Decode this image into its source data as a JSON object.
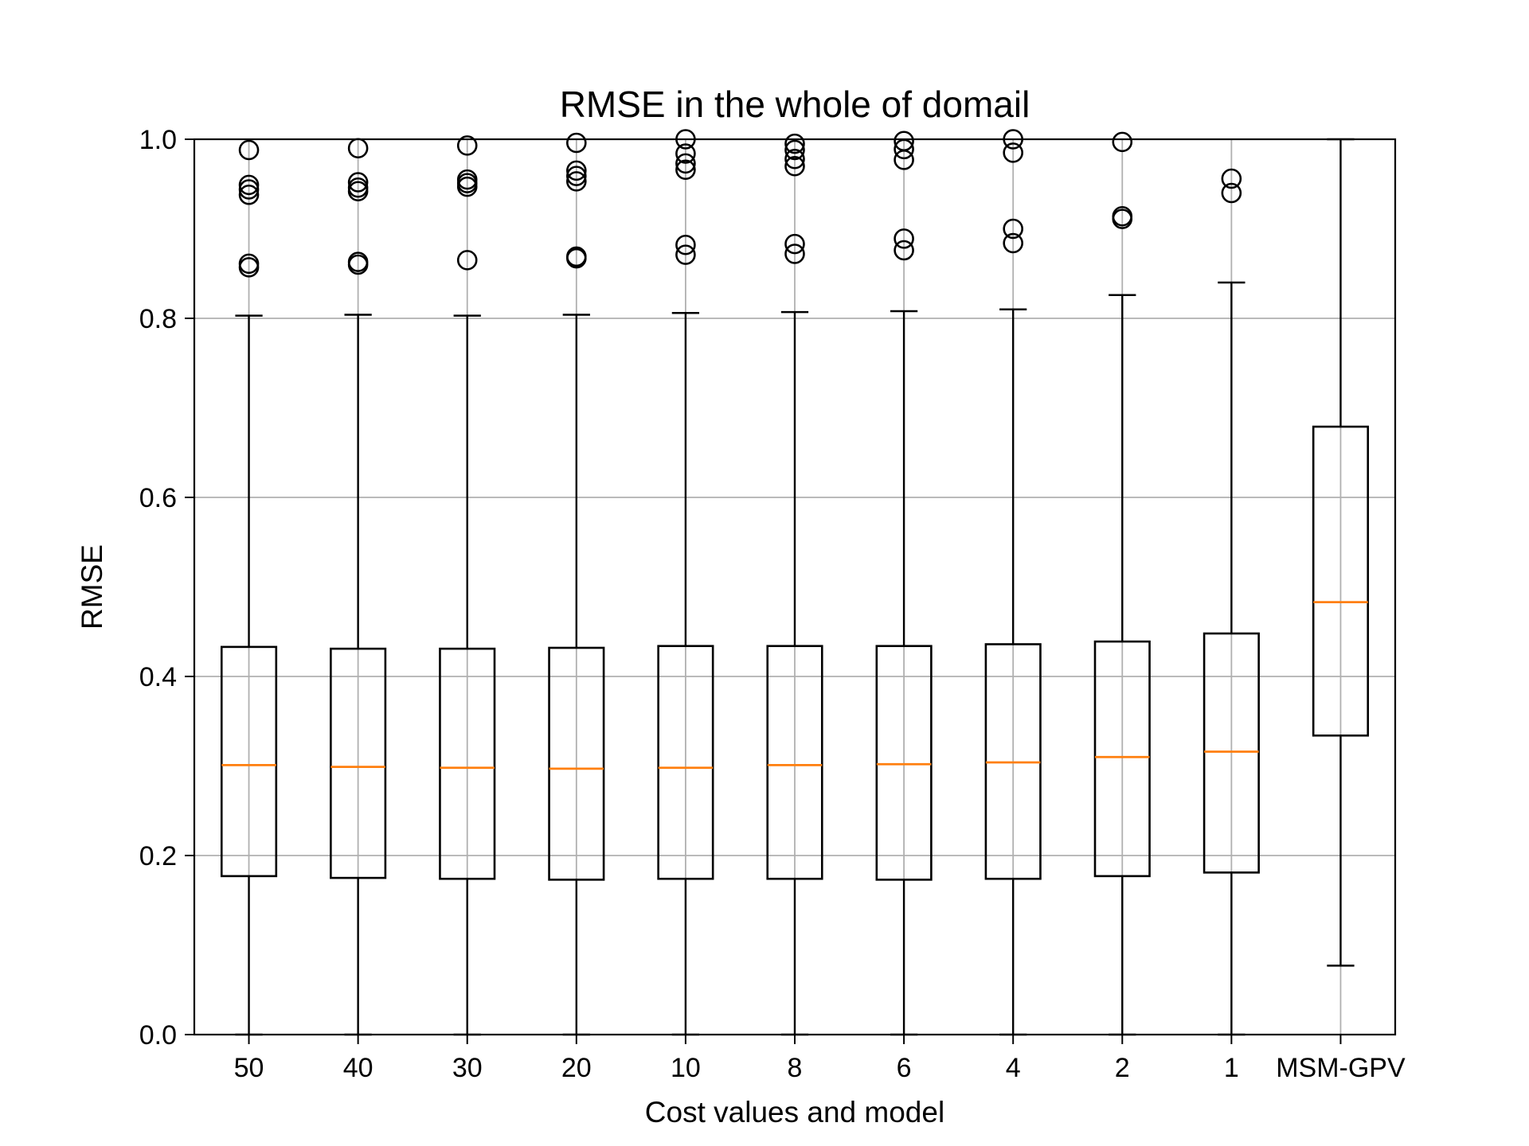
{
  "chart_data": {
    "type": "boxplot",
    "title": "RMSE in the whole of domail",
    "xlabel": "Cost values and model",
    "ylabel": "RMSE",
    "ylim": [
      0,
      1.0
    ],
    "yticks": [
      "0.0",
      "0.2",
      "0.4",
      "0.6",
      "0.8",
      "1.0"
    ],
    "grid": true,
    "colors": {
      "box": "#000000",
      "median": "#ff7f0e",
      "grid": "#b0b0b0"
    },
    "categories": [
      "50",
      "40",
      "30",
      "20",
      "10",
      "8",
      "6",
      "4",
      "2",
      "1",
      "MSM-GPV"
    ],
    "boxes": [
      {
        "label": "50",
        "whisker_low": 0.0,
        "q1": 0.177,
        "median": 0.301,
        "q3": 0.433,
        "whisker_high": 0.803,
        "outliers": [
          0.857,
          0.861,
          0.938,
          0.944,
          0.949,
          0.988
        ]
      },
      {
        "label": "40",
        "whisker_low": 0.0,
        "q1": 0.175,
        "median": 0.299,
        "q3": 0.431,
        "whisker_high": 0.804,
        "outliers": [
          0.86,
          0.863,
          0.942,
          0.946,
          0.952,
          0.99
        ]
      },
      {
        "label": "30",
        "whisker_low": 0.0,
        "q1": 0.174,
        "median": 0.298,
        "q3": 0.431,
        "whisker_high": 0.803,
        "outliers": [
          0.865,
          0.947,
          0.951,
          0.955,
          0.993
        ]
      },
      {
        "label": "20",
        "whisker_low": 0.0,
        "q1": 0.173,
        "median": 0.297,
        "q3": 0.432,
        "whisker_high": 0.804,
        "outliers": [
          0.867,
          0.869,
          0.953,
          0.959,
          0.965,
          0.996
        ]
      },
      {
        "label": "10",
        "whisker_low": 0.0,
        "q1": 0.174,
        "median": 0.298,
        "q3": 0.434,
        "whisker_high": 0.806,
        "outliers": [
          0.871,
          0.882,
          0.966,
          0.973,
          0.984,
          1.0
        ]
      },
      {
        "label": "8",
        "whisker_low": 0.0,
        "q1": 0.174,
        "median": 0.301,
        "q3": 0.434,
        "whisker_high": 0.807,
        "outliers": [
          0.872,
          0.883,
          0.97,
          0.978,
          0.988,
          0.995
        ]
      },
      {
        "label": "6",
        "whisker_low": 0.0,
        "q1": 0.173,
        "median": 0.302,
        "q3": 0.434,
        "whisker_high": 0.808,
        "outliers": [
          0.876,
          0.889,
          0.977,
          0.989,
          0.998
        ]
      },
      {
        "label": "4",
        "whisker_low": 0.0,
        "q1": 0.174,
        "median": 0.304,
        "q3": 0.436,
        "whisker_high": 0.81,
        "outliers": [
          0.884,
          0.9,
          0.985,
          1.0
        ]
      },
      {
        "label": "2",
        "whisker_low": 0.0,
        "q1": 0.177,
        "median": 0.31,
        "q3": 0.439,
        "whisker_high": 0.826,
        "outliers": [
          0.911,
          0.914,
          0.997
        ]
      },
      {
        "label": "1",
        "whisker_low": 0.0,
        "q1": 0.181,
        "median": 0.316,
        "q3": 0.448,
        "whisker_high": 0.84,
        "outliers": [
          0.94,
          0.956
        ]
      },
      {
        "label": "MSM-GPV",
        "whisker_low": 0.077,
        "q1": 0.334,
        "median": 0.483,
        "q3": 0.679,
        "whisker_high": 1.0,
        "outliers": []
      }
    ]
  }
}
